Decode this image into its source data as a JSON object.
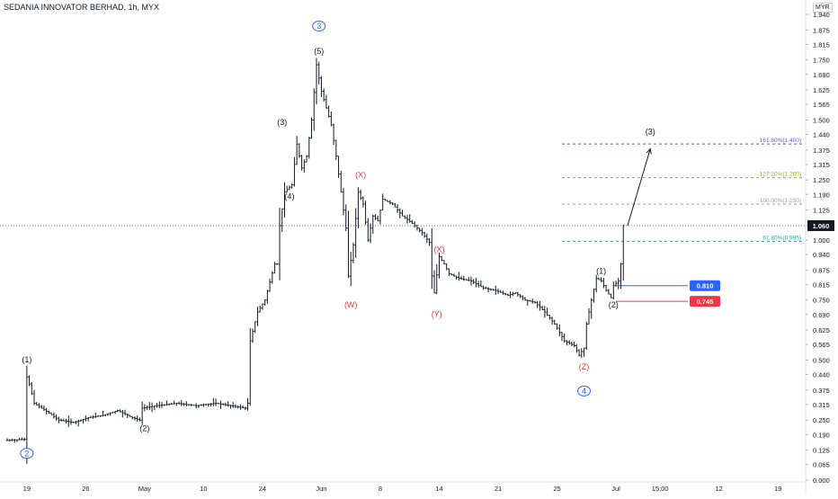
{
  "header": {
    "title": "SEDANIA INNOVATOR BERHAD, 1h, MYX",
    "currency": "MYR"
  },
  "chart_data": {
    "type": "bar",
    "title": "SEDANIA INNOVATOR BERHAD, 1h, MYX",
    "currency": "MYR",
    "ylim": [
      0.0,
      1.97
    ],
    "y_ticks": [
      "1.940",
      "1.875",
      "1.815",
      "1.750",
      "1.690",
      "1.625",
      "1.565",
      "1.500",
      "1.440",
      "1.375",
      "1.315",
      "1.250",
      "1.190",
      "1.125",
      "1.060",
      "1.000",
      "0.940",
      "0.875",
      "0.815",
      "0.750",
      "0.690",
      "0.625",
      "0.565",
      "0.500",
      "0.440",
      "0.375",
      "0.315",
      "0.250",
      "0.190",
      "0.125",
      "0.065",
      "0.000"
    ],
    "x_ticks": [
      {
        "label": "12",
        "i": -8
      },
      {
        "label": "19",
        "i": 8
      },
      {
        "label": "26",
        "i": 32
      },
      {
        "label": "May",
        "i": 56
      },
      {
        "label": "10",
        "i": 80
      },
      {
        "label": "24",
        "i": 104
      },
      {
        "label": "Jun",
        "i": 128
      },
      {
        "label": "8",
        "i": 152
      },
      {
        "label": "14",
        "i": 176
      },
      {
        "label": "21",
        "i": 200
      },
      {
        "label": "25",
        "i": 224
      },
      {
        "label": "Jul",
        "i": 248
      },
      {
        "label": "15:00",
        "i": 266
      },
      {
        "label": "12",
        "i": 290
      },
      {
        "label": "19",
        "i": 314
      }
    ],
    "price_path": [
      [
        0,
        0.165
      ],
      [
        8,
        0.17
      ],
      [
        9,
        0.43
      ],
      [
        10,
        0.4
      ],
      [
        12,
        0.32
      ],
      [
        18,
        0.28
      ],
      [
        22,
        0.25
      ],
      [
        28,
        0.24
      ],
      [
        34,
        0.26
      ],
      [
        40,
        0.27
      ],
      [
        46,
        0.29
      ],
      [
        52,
        0.26
      ],
      [
        55,
        0.25
      ],
      [
        56,
        0.3
      ],
      [
        62,
        0.31
      ],
      [
        70,
        0.32
      ],
      [
        78,
        0.31
      ],
      [
        86,
        0.32
      ],
      [
        92,
        0.31
      ],
      [
        98,
        0.3
      ],
      [
        99,
        0.32
      ],
      [
        100,
        0.58
      ],
      [
        103,
        0.7
      ],
      [
        106,
        0.75
      ],
      [
        110,
        0.9
      ],
      [
        111,
        0.9
      ],
      [
        112,
        1.06
      ],
      [
        114,
        1.2
      ],
      [
        117,
        1.23
      ],
      [
        119,
        1.4
      ],
      [
        121,
        1.3
      ],
      [
        123,
        1.35
      ],
      [
        125,
        1.5
      ],
      [
        127,
        1.73
      ],
      [
        129,
        1.62
      ],
      [
        131,
        1.55
      ],
      [
        133,
        1.48
      ],
      [
        135,
        1.35
      ],
      [
        137,
        1.2
      ],
      [
        139,
        1.05
      ],
      [
        140,
        0.85
      ],
      [
        142,
        0.98
      ],
      [
        144,
        1.2
      ],
      [
        146,
        1.15
      ],
      [
        148,
        1.0
      ],
      [
        150,
        1.1
      ],
      [
        152,
        1.08
      ],
      [
        154,
        1.17
      ],
      [
        158,
        1.15
      ],
      [
        162,
        1.1
      ],
      [
        166,
        1.07
      ],
      [
        170,
        1.03
      ],
      [
        173,
        0.99
      ],
      [
        174,
        0.85
      ],
      [
        175,
        0.78
      ],
      [
        177,
        0.93
      ],
      [
        179,
        0.9
      ],
      [
        181,
        0.86
      ],
      [
        185,
        0.84
      ],
      [
        190,
        0.83
      ],
      [
        195,
        0.8
      ],
      [
        200,
        0.79
      ],
      [
        205,
        0.77
      ],
      [
        208,
        0.78
      ],
      [
        212,
        0.75
      ],
      [
        216,
        0.74
      ],
      [
        220,
        0.7
      ],
      [
        224,
        0.65
      ],
      [
        228,
        0.58
      ],
      [
        232,
        0.56
      ],
      [
        234,
        0.52
      ],
      [
        236,
        0.55
      ],
      [
        237,
        0.65
      ],
      [
        239,
        0.75
      ],
      [
        241,
        0.84
      ],
      [
        243,
        0.83
      ],
      [
        245,
        0.79
      ],
      [
        247,
        0.76
      ],
      [
        248,
        0.81
      ],
      [
        250,
        0.83
      ],
      [
        251,
        0.9
      ],
      [
        252,
        1.06
      ]
    ],
    "wave_labels": [
      {
        "text": "2",
        "i": 8,
        "price": 0.1,
        "color": "#2962ff",
        "circled": true
      },
      {
        "text": "(1)",
        "i": 8,
        "price": 0.49,
        "color": "#131722"
      },
      {
        "text": "(2)",
        "i": 56,
        "price": 0.205,
        "color": "#131722"
      },
      {
        "text": "(3)",
        "i": 112,
        "price": 1.48,
        "color": "#131722"
      },
      {
        "text": "(4)",
        "i": 115,
        "price": 1.17,
        "color": "#131722"
      },
      {
        "text": "(5)",
        "i": 127,
        "price": 1.775,
        "color": "#131722"
      },
      {
        "text": "3",
        "i": 127,
        "price": 1.88,
        "color": "#2962ff",
        "circled": true
      },
      {
        "text": "(X)",
        "i": 144,
        "price": 1.26,
        "color": "#e53935"
      },
      {
        "text": "(W)",
        "i": 140,
        "price": 0.72,
        "color": "#e53935"
      },
      {
        "text": "(X)",
        "i": 176,
        "price": 0.95,
        "color": "#e53935"
      },
      {
        "text": "(Y)",
        "i": 175,
        "price": 0.68,
        "color": "#e53935"
      },
      {
        "text": "(Z)",
        "i": 235,
        "price": 0.46,
        "color": "#e53935"
      },
      {
        "text": "4",
        "i": 235,
        "price": 0.36,
        "color": "#2962ff",
        "circled": true
      },
      {
        "text": "(1)",
        "i": 242,
        "price": 0.86,
        "color": "#131722"
      },
      {
        "text": "(2)",
        "i": 247,
        "price": 0.72,
        "color": "#131722"
      },
      {
        "text": "(3)",
        "i": 262,
        "price": 1.44,
        "color": "#131722"
      }
    ],
    "fib_levels": [
      {
        "label": "161.80%(1.400)",
        "price": 1.4,
        "color": "#5b5bd6"
      },
      {
        "label": "127.20%(1.260)",
        "price": 1.26,
        "color": "#a0b020"
      },
      {
        "label": "100.00%(1.150)",
        "price": 1.15,
        "color": "#9e9e9e"
      },
      {
        "label": "61.80%(0.995)",
        "price": 0.995,
        "color": "#26a69a"
      }
    ],
    "projection": [
      [
        252,
        1.06
      ],
      [
        262,
        1.38
      ]
    ],
    "current_price": {
      "label": "1.060",
      "value": 1.06
    },
    "target_tag": {
      "label": "0.810",
      "value": 0.81,
      "color": "#2962ff"
    },
    "stop_tag": {
      "label": "0.745",
      "value": 0.745,
      "color": "#f23645"
    }
  }
}
